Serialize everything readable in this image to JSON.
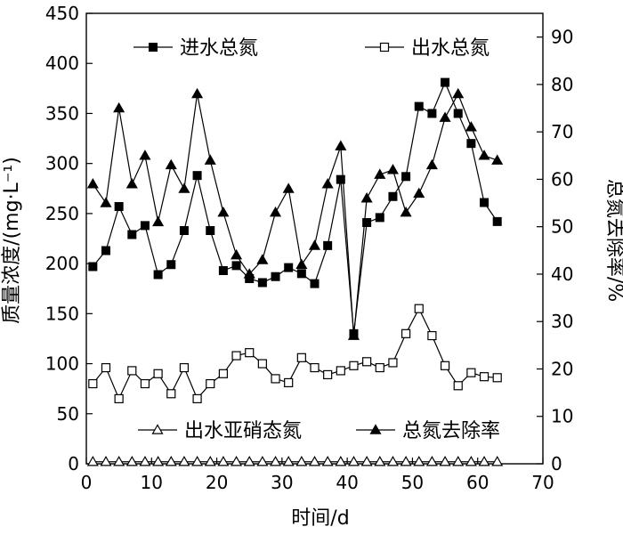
{
  "chart_data": {
    "type": "line",
    "xlabel": "时间/d",
    "ylabel_left": "质量浓度/(mg·L⁻¹)",
    "ylabel_right": "总氮去除率/%",
    "xlim": [
      0,
      70
    ],
    "ylim_left": [
      0,
      450
    ],
    "ylim_right": [
      0,
      95
    ],
    "x_ticks": [
      "0",
      "10",
      "20",
      "30",
      "40",
      "50",
      "60",
      "70"
    ],
    "y_ticks_left": [
      "0",
      "50",
      "100",
      "150",
      "200",
      "250",
      "300",
      "350",
      "400",
      "450"
    ],
    "y_ticks_right": [
      "0",
      "10",
      "20",
      "30",
      "40",
      "50",
      "60",
      "70",
      "80",
      "90"
    ],
    "grid": false,
    "series": [
      {
        "name": "进水总氮",
        "axis": "left",
        "marker": "filled-square",
        "x": [
          1,
          3,
          5,
          7,
          9,
          11,
          13,
          15,
          17,
          19,
          21,
          23,
          25,
          27,
          29,
          31,
          33,
          35,
          37,
          39,
          41,
          43,
          45,
          47,
          49,
          51,
          53,
          55,
          57,
          59,
          61,
          63
        ],
        "y": [
          197,
          213,
          257,
          229,
          238,
          189,
          199,
          233,
          288,
          233,
          193,
          198,
          185,
          181,
          187,
          196,
          190,
          180,
          218,
          284,
          130,
          241,
          246,
          267,
          287,
          357,
          350,
          381,
          350,
          320,
          261,
          242
        ]
      },
      {
        "name": "出水总氮",
        "axis": "left",
        "marker": "open-square",
        "x": [
          1,
          3,
          5,
          7,
          9,
          11,
          13,
          15,
          17,
          19,
          21,
          23,
          25,
          27,
          29,
          31,
          33,
          35,
          37,
          39,
          41,
          43,
          45,
          47,
          49,
          51,
          53,
          55,
          57,
          59,
          61,
          63
        ],
        "y": [
          80,
          96,
          65,
          93,
          80,
          90,
          70,
          96,
          65,
          80,
          90,
          108,
          111,
          100,
          85,
          81,
          106,
          96,
          89,
          93,
          98,
          102,
          96,
          101,
          130,
          155,
          128,
          98,
          78,
          91,
          87,
          86
        ]
      },
      {
        "name": "出水亚硝态氮",
        "axis": "left",
        "marker": "open-triangle",
        "x": [
          1,
          3,
          5,
          7,
          9,
          11,
          13,
          15,
          17,
          19,
          21,
          23,
          25,
          27,
          29,
          31,
          33,
          35,
          37,
          39,
          41,
          43,
          45,
          47,
          49,
          51,
          53,
          55,
          57,
          59,
          61,
          63
        ],
        "y": [
          2,
          2,
          2,
          2,
          2,
          2,
          2,
          2,
          2,
          2,
          2,
          2,
          2,
          2,
          2,
          2,
          2,
          2,
          2,
          2,
          2,
          2,
          2,
          2,
          2,
          2,
          2,
          2,
          2,
          2,
          2,
          2
        ]
      },
      {
        "name": "总氮去除率",
        "axis": "right",
        "marker": "filled-triangle",
        "x": [
          1,
          3,
          5,
          7,
          9,
          11,
          13,
          15,
          17,
          19,
          21,
          23,
          25,
          27,
          29,
          31,
          33,
          35,
          37,
          39,
          41,
          43,
          45,
          47,
          49,
          51,
          53,
          55,
          57,
          59,
          61,
          63
        ],
        "y": [
          59,
          55,
          75,
          59,
          65,
          51,
          63,
          58,
          78,
          64,
          53,
          44,
          40,
          43,
          53,
          58,
          42,
          46,
          59,
          67,
          27,
          56,
          61,
          62,
          53,
          57,
          63,
          73,
          78,
          71,
          65,
          64
        ]
      }
    ]
  }
}
